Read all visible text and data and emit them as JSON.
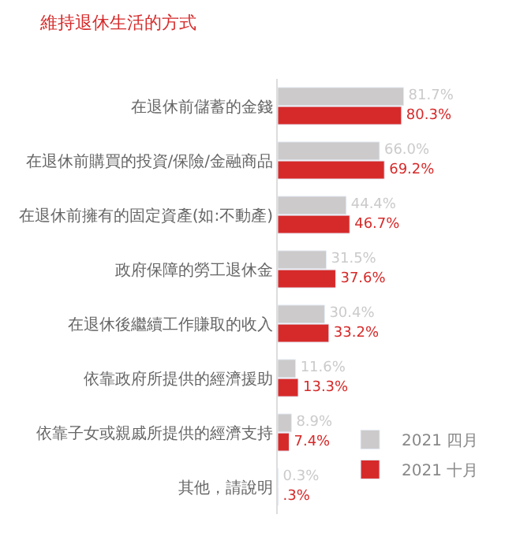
{
  "chart_data": {
    "type": "bar",
    "orientation": "horizontal",
    "title": "維持退休生活的方式",
    "categories": [
      "在退休前儲蓄的金錢",
      "在退休前購買的投資/保險/金融商品",
      "在退休前擁有的固定資產(如:不動產)",
      "政府保障的勞工退休金",
      "在退休後繼續工作賺取的收入",
      "依靠政府所提供的經濟援助",
      "依靠子女或親戚所提供的經濟支持",
      "其他，請說明"
    ],
    "series": [
      {
        "name": "2021 四月",
        "color": "#cccaca",
        "values": [
          81.7,
          66.0,
          44.4,
          31.5,
          30.4,
          11.6,
          8.9,
          0.3
        ],
        "value_labels": [
          "81.7%",
          "66.0%",
          "44.4%",
          "31.5%",
          "30.4%",
          "11.6%",
          "8.9%",
          "0.3%"
        ]
      },
      {
        "name": "2021 十月",
        "color": "#d62a2a",
        "values": [
          80.3,
          69.2,
          46.7,
          37.6,
          33.2,
          13.3,
          7.4,
          0.3
        ],
        "value_labels": [
          "80.3%",
          "69.2%",
          "46.7%",
          "37.6%",
          "33.2%",
          "13.3%",
          "7.4%",
          ".3%"
        ]
      }
    ],
    "tick_labels": "y",
    "legend": "right"
  }
}
